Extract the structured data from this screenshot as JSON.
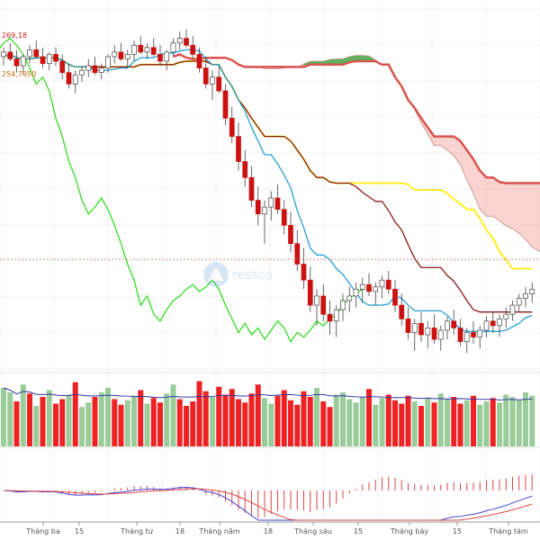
{
  "chart_data": {
    "type": "candlestick",
    "title": "",
    "price_labels": [
      "269,18",
      "254,7950"
    ],
    "xaxis": {
      "ticks": [
        "Tháng ba",
        "15",
        "Tháng tư",
        "18",
        "Tháng năm",
        "18",
        "Tháng sáu",
        "15",
        "Tháng bảy",
        "15",
        "Tháng tám"
      ]
    },
    "grid": true,
    "panels": [
      "price",
      "volume",
      "macd"
    ],
    "colors": {
      "up": "#ffffff",
      "down": "#cc1111",
      "tenkan": "#2a9fd6",
      "kijun": "#8b1a1a",
      "chikou": "#33dd22",
      "senkou_a_slow": "#d9534f",
      "senkou_b": "#ffee22",
      "cloud_bull": "#3ea53e",
      "cloud_bear": "#f4b6b0",
      "volume_up": "#99cc99",
      "volume_down": "#ee2222",
      "volume_ma": "#3333aa",
      "macd": "#4444dd",
      "signal": "#dd4444",
      "hist": "#dd4444"
    },
    "candles": [
      [
        262,
        266,
        258,
        264
      ],
      [
        264,
        268,
        260,
        261
      ],
      [
        261,
        265,
        255,
        258
      ],
      [
        258,
        263,
        254,
        262
      ],
      [
        262,
        267,
        259,
        265
      ],
      [
        265,
        269,
        261,
        262
      ],
      [
        262,
        266,
        257,
        259
      ],
      [
        259,
        264,
        256,
        263
      ],
      [
        263,
        266,
        258,
        260
      ],
      [
        260,
        263,
        252,
        255
      ],
      [
        255,
        259,
        248,
        250
      ],
      [
        250,
        256,
        246,
        254
      ],
      [
        254,
        258,
        251,
        256
      ],
      [
        256,
        261,
        253,
        258
      ],
      [
        258,
        262,
        254,
        255
      ],
      [
        255,
        259,
        252,
        257
      ],
      [
        257,
        263,
        255,
        262
      ],
      [
        262,
        267,
        259,
        264
      ],
      [
        264,
        268,
        260,
        261
      ],
      [
        261,
        265,
        257,
        263
      ],
      [
        263,
        269,
        260,
        267
      ],
      [
        267,
        271,
        263,
        264
      ],
      [
        264,
        268,
        261,
        266
      ],
      [
        266,
        270,
        262,
        263
      ],
      [
        263,
        267,
        258,
        260
      ],
      [
        260,
        265,
        256,
        264
      ],
      [
        264,
        270,
        262,
        268
      ],
      [
        268,
        273,
        265,
        270
      ],
      [
        270,
        274,
        266,
        267
      ],
      [
        267,
        271,
        261,
        263
      ],
      [
        263,
        266,
        255,
        257
      ],
      [
        257,
        262,
        248,
        250
      ],
      [
        250,
        256,
        243,
        253
      ],
      [
        253,
        258,
        246,
        247
      ],
      [
        247,
        250,
        232,
        235
      ],
      [
        235,
        240,
        224,
        227
      ],
      [
        227,
        233,
        212,
        216
      ],
      [
        216,
        221,
        205,
        209
      ],
      [
        209,
        214,
        196,
        199
      ],
      [
        199,
        205,
        188,
        193
      ],
      [
        193,
        199,
        180,
        196
      ],
      [
        196,
        203,
        190,
        200
      ],
      [
        200,
        206,
        193,
        195
      ],
      [
        195,
        199,
        184,
        188
      ],
      [
        188,
        194,
        176,
        180
      ],
      [
        180,
        186,
        168,
        171
      ],
      [
        171,
        178,
        160,
        164
      ],
      [
        164,
        170,
        150,
        153
      ],
      [
        153,
        160,
        144,
        157
      ],
      [
        157,
        162,
        146,
        149
      ],
      [
        149,
        155,
        140,
        146
      ],
      [
        146,
        153,
        139,
        151
      ],
      [
        151,
        158,
        146,
        155
      ],
      [
        155,
        161,
        150,
        157
      ],
      [
        157,
        163,
        152,
        160
      ],
      [
        160,
        165,
        154,
        162
      ],
      [
        162,
        167,
        157,
        159
      ],
      [
        159,
        163,
        153,
        161
      ],
      [
        161,
        166,
        156,
        164
      ],
      [
        164,
        168,
        158,
        160
      ],
      [
        160,
        164,
        150,
        153
      ],
      [
        153,
        158,
        144,
        147
      ],
      [
        147,
        152,
        138,
        141
      ],
      [
        141,
        147,
        133,
        145
      ],
      [
        145,
        150,
        137,
        140
      ],
      [
        140,
        146,
        134,
        143
      ],
      [
        143,
        149,
        136,
        138
      ],
      [
        138,
        144,
        133,
        142
      ],
      [
        142,
        148,
        138,
        146
      ],
      [
        146,
        151,
        140,
        143
      ],
      [
        143,
        147,
        135,
        137
      ],
      [
        137,
        143,
        132,
        141
      ],
      [
        141,
        146,
        136,
        139
      ],
      [
        139,
        144,
        134,
        142
      ],
      [
        142,
        148,
        139,
        146
      ],
      [
        146,
        150,
        141,
        144
      ],
      [
        144,
        149,
        139,
        147
      ],
      [
        147,
        152,
        143,
        149
      ],
      [
        149,
        155,
        146,
        153
      ],
      [
        153,
        158,
        150,
        156
      ],
      [
        156,
        161,
        152,
        158
      ],
      [
        158,
        163,
        154,
        160
      ]
    ],
    "volume": [
      52,
      48,
      40,
      55,
      47,
      36,
      44,
      50,
      38,
      42,
      46,
      57,
      35,
      39,
      44,
      48,
      52,
      42,
      37,
      41,
      45,
      50,
      38,
      43,
      39,
      47,
      55,
      42,
      36,
      40,
      58,
      49,
      44,
      53,
      46,
      51,
      42,
      39,
      47,
      55,
      43,
      38,
      45,
      50,
      41,
      37,
      49,
      44,
      52,
      40,
      35,
      46,
      48,
      42,
      39,
      44,
      51,
      37,
      43,
      46,
      41,
      38,
      45,
      40,
      36,
      43,
      39,
      47,
      42,
      44,
      38,
      41,
      45,
      37,
      40,
      43,
      39,
      46,
      44,
      41,
      48,
      45
    ],
    "volume_up": [
      1,
      1,
      0,
      1,
      0,
      1,
      0,
      1,
      0,
      0,
      1,
      0,
      1,
      1,
      0,
      1,
      1,
      0,
      0,
      1,
      1,
      0,
      1,
      0,
      0,
      1,
      1,
      0,
      0,
      0,
      0,
      0,
      1,
      0,
      0,
      0,
      0,
      0,
      0,
      0,
      1,
      1,
      0,
      0,
      0,
      0,
      0,
      0,
      1,
      0,
      0,
      1,
      1,
      1,
      1,
      1,
      0,
      1,
      1,
      0,
      0,
      0,
      0,
      1,
      0,
      1,
      0,
      1,
      1,
      0,
      0,
      1,
      0,
      1,
      1,
      0,
      1,
      1,
      1,
      1,
      1,
      1
    ]
  }
}
